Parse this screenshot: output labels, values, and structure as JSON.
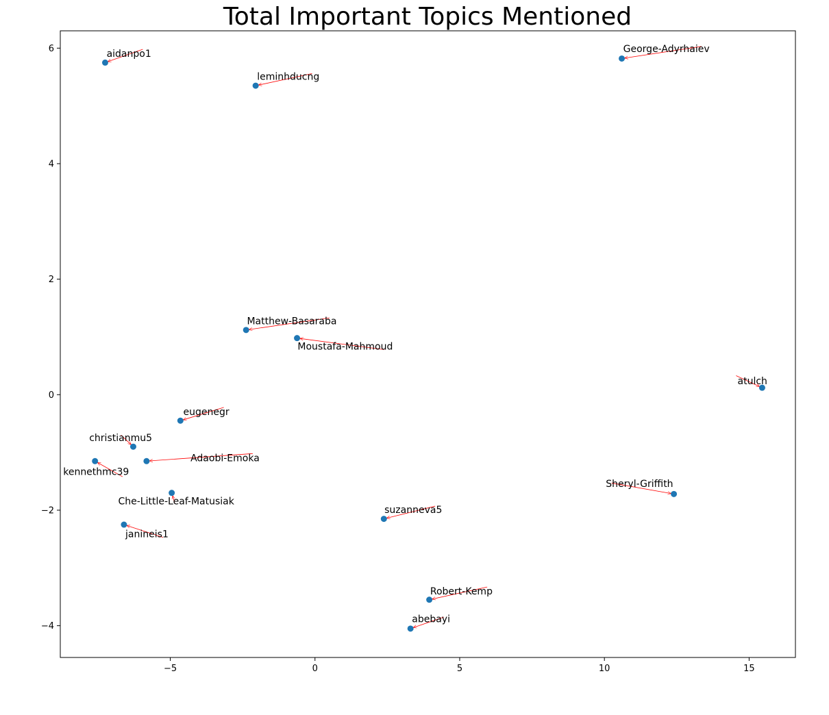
{
  "chart_data": {
    "type": "scatter",
    "title": "Total Important Topics Mentioned",
    "xlabel": "",
    "ylabel": "",
    "xlim": [
      -8.8,
      16.6
    ],
    "ylim": [
      -4.55,
      6.3
    ],
    "x_ticks": [
      -5,
      0,
      5,
      10,
      15
    ],
    "y_ticks": [
      -4,
      -2,
      0,
      2,
      4,
      6
    ],
    "x_tick_labels": [
      "−5",
      "0",
      "5",
      "10",
      "15"
    ],
    "y_tick_labels": [
      "−4",
      "−2",
      "0",
      "2",
      "4",
      "6"
    ],
    "grid": false,
    "colors": {
      "point": "#1f77b4",
      "arrow": "#ff0000",
      "axes": "#000000"
    },
    "points": [
      {
        "name": "aidanpo1",
        "x": -7.25,
        "y": 5.75,
        "label_x": -7.2,
        "label_y": 5.85,
        "arrow_x": -5.95,
        "arrow_y": 5.98
      },
      {
        "name": "leminhducng",
        "x": -2.05,
        "y": 5.35,
        "label_x": -2.0,
        "label_y": 5.45,
        "arrow_x": -0.1,
        "arrow_y": 5.56
      },
      {
        "name": "George-Adyrhaiev",
        "x": 10.6,
        "y": 5.82,
        "label_x": 10.65,
        "label_y": 5.93,
        "arrow_x": 13.35,
        "arrow_y": 6.03
      },
      {
        "name": "Matthew-Basaraba",
        "x": -2.38,
        "y": 1.12,
        "label_x": -2.35,
        "label_y": 1.22,
        "arrow_x": 0.5,
        "arrow_y": 1.33
      },
      {
        "name": "Moustafa-Mahmoud",
        "x": -0.62,
        "y": 0.98,
        "label_x": -0.6,
        "label_y": 0.78,
        "arrow_x": 2.4,
        "arrow_y": 0.78
      },
      {
        "name": "atulch",
        "x": 15.45,
        "y": 0.12,
        "label_x": 14.6,
        "label_y": 0.18,
        "arrow_x": 14.55,
        "arrow_y": 0.33
      },
      {
        "name": "eugenegr",
        "x": -4.65,
        "y": -0.45,
        "label_x": -4.55,
        "label_y": -0.35,
        "arrow_x": -3.15,
        "arrow_y": -0.22
      },
      {
        "name": "christianmu5",
        "x": -6.28,
        "y": -0.9,
        "label_x": -7.8,
        "label_y": -0.8,
        "arrow_x": -6.7,
        "arrow_y": -0.7
      },
      {
        "name": "Adaobi-Emoka",
        "x": -5.82,
        "y": -1.15,
        "label_x": -4.3,
        "label_y": -1.15,
        "arrow_x": -2.15,
        "arrow_y": -1.02
      },
      {
        "name": "kennethmc39",
        "x": -7.6,
        "y": -1.15,
        "label_x": -8.7,
        "label_y": -1.39,
        "arrow_x": -6.65,
        "arrow_y": -1.42
      },
      {
        "name": "Che-Little-Leaf-Matusiak",
        "x": -4.95,
        "y": -1.7,
        "label_x": -6.8,
        "label_y": -1.9,
        "arrow_x": -4.85,
        "arrow_y": -1.87
      },
      {
        "name": "Sheryl-Griffith",
        "x": 12.4,
        "y": -1.72,
        "label_x": 10.05,
        "label_y": -1.6,
        "arrow_x": 10.25,
        "arrow_y": -1.53
      },
      {
        "name": "suzanneva5",
        "x": 2.38,
        "y": -2.15,
        "label_x": 2.4,
        "label_y": -2.05,
        "arrow_x": 4.15,
        "arrow_y": -1.93
      },
      {
        "name": "janineis1",
        "x": -6.6,
        "y": -2.25,
        "label_x": -6.55,
        "label_y": -2.47,
        "arrow_x": -5.25,
        "arrow_y": -2.47
      },
      {
        "name": "Robert-Kemp",
        "x": 3.95,
        "y": -3.55,
        "label_x": 3.98,
        "label_y": -3.46,
        "arrow_x": 5.95,
        "arrow_y": -3.33
      },
      {
        "name": "abebayi",
        "x": 3.3,
        "y": -4.05,
        "label_x": 3.35,
        "label_y": -3.94,
        "arrow_x": 4.45,
        "arrow_y": -3.85
      }
    ]
  }
}
